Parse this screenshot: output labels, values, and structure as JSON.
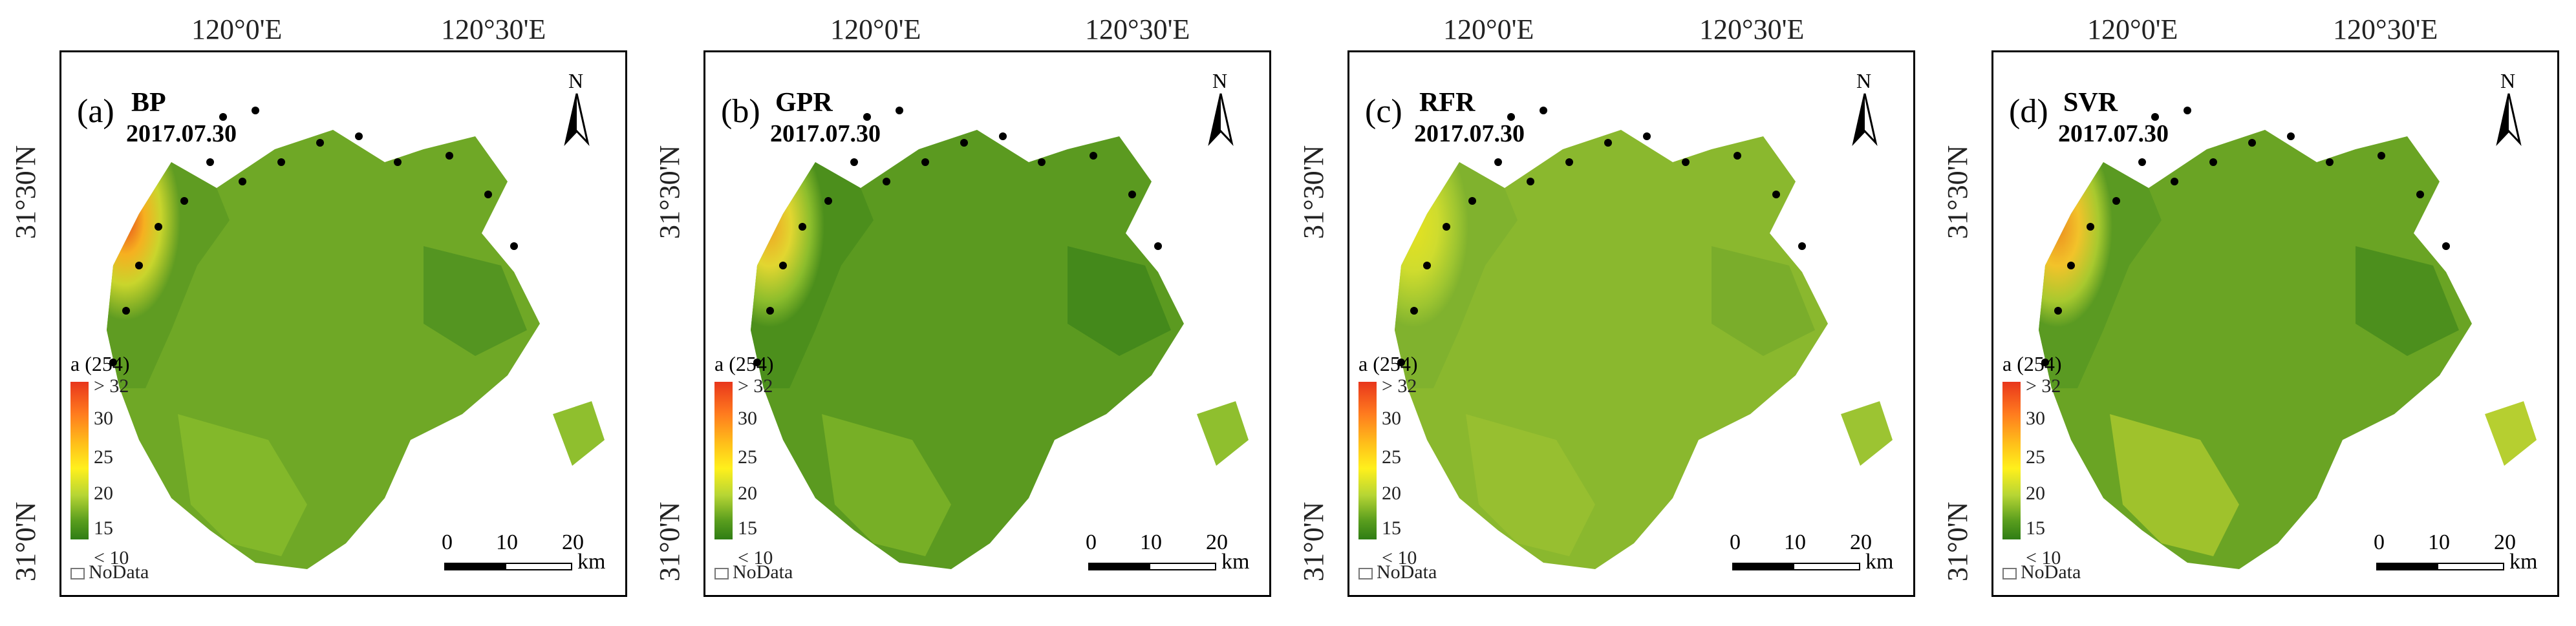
{
  "coordinates": {
    "lon_left": "120°0'E",
    "lon_right": "120°30'E",
    "lat_top": "31°30'N",
    "lat_bottom": "31°0'N"
  },
  "legend": {
    "title": "a (254)",
    "ticks": [
      "> 32",
      "30",
      "25",
      "20",
      "15",
      "< 10"
    ],
    "nodata": "NoData",
    "color_high": "#e8361c",
    "color_low": "#2f7d14"
  },
  "scale_bar": {
    "labels": [
      "0",
      "10",
      "20"
    ],
    "unit": "km"
  },
  "north_arrow": {
    "label": "N",
    "icon": "north-arrow-icon"
  },
  "panels": [
    {
      "letter": "(a)",
      "model": "BP",
      "date": "2017.07.30",
      "west_color": "#e6441a",
      "core_color": "#5f9c22"
    },
    {
      "letter": "(b)",
      "model": "GPR",
      "date": "2017.07.30",
      "west_color": "#f0a322",
      "core_color": "#4c8f1c"
    },
    {
      "letter": "(c)",
      "model": "RFR",
      "date": "2017.07.30",
      "west_color": "#e6e21f",
      "core_color": "#80b22e"
    },
    {
      "letter": "(d)",
      "model": "SVR",
      "date": "2017.07.30",
      "west_color": "#ec8a1e",
      "core_color": "#5a9a22"
    }
  ]
}
